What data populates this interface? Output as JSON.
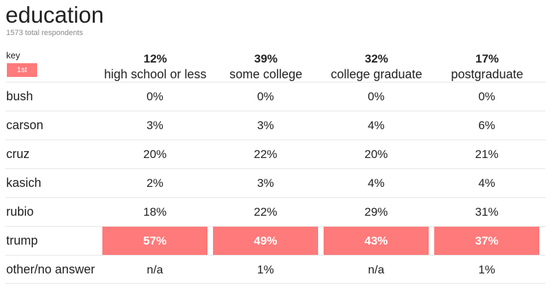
{
  "title": "education",
  "subtitle": "1573 total respondents",
  "key": {
    "label": "key",
    "swatch_label": "1st",
    "highlight_color": "#ff7a7a"
  },
  "chart_data": {
    "type": "table",
    "title": "education",
    "subtitle": "1573 total respondents",
    "columns": [
      {
        "share": "12%",
        "name": "high school or less"
      },
      {
        "share": "39%",
        "name": "some college"
      },
      {
        "share": "32%",
        "name": "college graduate"
      },
      {
        "share": "17%",
        "name": "postgraduate"
      }
    ],
    "rows": [
      {
        "label": "bush",
        "values": [
          "0%",
          "0%",
          "0%",
          "0%"
        ],
        "first": [
          false,
          false,
          false,
          false
        ]
      },
      {
        "label": "carson",
        "values": [
          "3%",
          "3%",
          "4%",
          "6%"
        ],
        "first": [
          false,
          false,
          false,
          false
        ]
      },
      {
        "label": "cruz",
        "values": [
          "20%",
          "22%",
          "20%",
          "21%"
        ],
        "first": [
          false,
          false,
          false,
          false
        ]
      },
      {
        "label": "kasich",
        "values": [
          "2%",
          "3%",
          "4%",
          "4%"
        ],
        "first": [
          false,
          false,
          false,
          false
        ]
      },
      {
        "label": "rubio",
        "values": [
          "18%",
          "22%",
          "29%",
          "31%"
        ],
        "first": [
          false,
          false,
          false,
          false
        ]
      },
      {
        "label": "trump",
        "values": [
          "57%",
          "49%",
          "43%",
          "37%"
        ],
        "first": [
          true,
          true,
          true,
          true
        ]
      },
      {
        "label": "other/no answer",
        "values": [
          "n/a",
          "1%",
          "n/a",
          "1%"
        ],
        "first": [
          false,
          false,
          false,
          false
        ]
      }
    ]
  }
}
